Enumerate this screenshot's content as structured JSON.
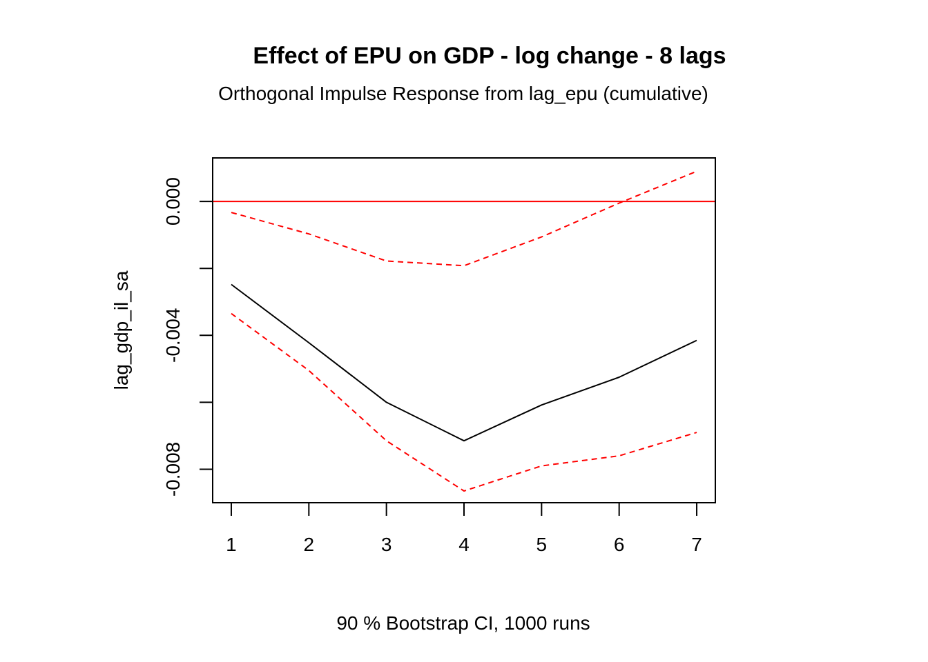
{
  "chart_data": {
    "type": "line",
    "title": "Effect of EPU on GDP - log change - 8 lags",
    "subtitle": "Orthogonal Impulse Response from lag_epu (cumulative)",
    "xlabel": "90 % Bootstrap CI,  1000 runs",
    "ylabel": "lag_gdp_il_sa",
    "x": [
      1,
      2,
      3,
      4,
      5,
      6,
      7
    ],
    "xlim": [
      0.76,
      7.24
    ],
    "ylim": [
      -0.009,
      0.0013
    ],
    "x_ticks": [
      "1",
      "2",
      "3",
      "4",
      "5",
      "6",
      "7"
    ],
    "y_ticks": [
      {
        "value": 0.0,
        "label": "0.000"
      },
      {
        "value": -0.002,
        "label": ""
      },
      {
        "value": -0.004,
        "label": "-0.004"
      },
      {
        "value": -0.006,
        "label": ""
      },
      {
        "value": -0.008,
        "label": "-0.008"
      }
    ],
    "reference_line": {
      "y": 0,
      "color": "#ff0000"
    },
    "grid": false,
    "legend": "none",
    "series": [
      {
        "key": "irf",
        "values": [
          -0.00248,
          -0.00422,
          -0.006,
          -0.00715,
          -0.00608,
          -0.00525,
          -0.00415
        ],
        "color": "#000000",
        "style": "solid"
      },
      {
        "key": "upper",
        "values": [
          -0.00033,
          -0.00097,
          -0.00178,
          -0.00192,
          -0.00106,
          -5e-05,
          0.0009
        ],
        "color": "#ff0000",
        "style": "dashed"
      },
      {
        "key": "lower",
        "values": [
          -0.00335,
          -0.00505,
          -0.00715,
          -0.00865,
          -0.0079,
          -0.0076,
          -0.0069
        ],
        "color": "#ff0000",
        "style": "dashed"
      }
    ]
  }
}
